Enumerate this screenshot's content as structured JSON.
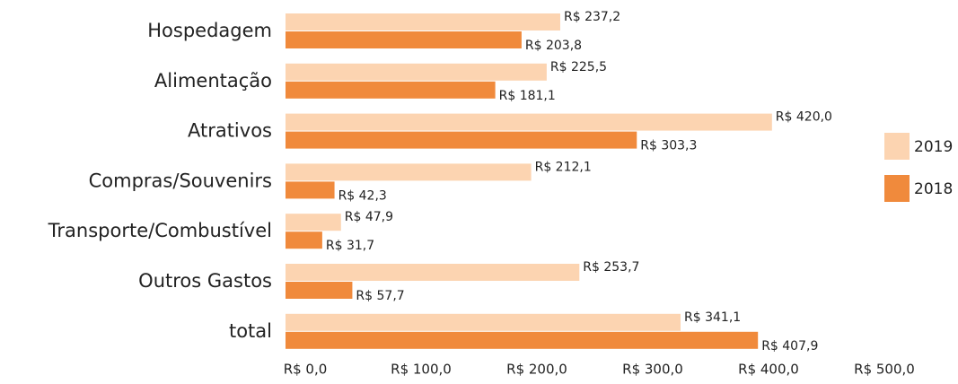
{
  "chart_data": {
    "type": "barh",
    "categories": [
      "Hospedagem",
      "Alimentação",
      "Atrativos",
      "Compras/Souvenirs",
      "Transporte/Combustível",
      "Outros Gastos",
      "total"
    ],
    "series": [
      {
        "name": "2019",
        "color": "#fcd4b1",
        "values": [
          237.2,
          225.5,
          420.0,
          212.1,
          47.9,
          253.7,
          341.1
        ],
        "value_labels": [
          "R$ 237,2",
          "R$ 225,5",
          "R$ 420,0",
          "R$ 212,1",
          "R$ 47,9",
          "R$ 253,7",
          "R$ 341,1"
        ]
      },
      {
        "name": "2018",
        "color": "#f08a3c",
        "values": [
          203.8,
          181.1,
          303.3,
          42.3,
          31.7,
          57.7,
          407.9
        ],
        "value_labels": [
          "R$ 203,8",
          "R$ 181,1",
          "R$ 303,3",
          "R$ 42,3",
          "R$ 31,7",
          "R$ 57,7",
          "R$ 407,9"
        ]
      }
    ],
    "xlim": [
      0,
      500
    ],
    "xticks": [
      {
        "value": 0,
        "label": "R$ 0,0"
      },
      {
        "value": 100,
        "label": "R$ 100,0"
      },
      {
        "value": 200,
        "label": "R$ 200,0"
      },
      {
        "value": 300,
        "label": "R$ 300,0"
      },
      {
        "value": 400,
        "label": "R$ 400,0"
      },
      {
        "value": 500,
        "label": "R$ 500,0"
      }
    ],
    "legend": "right"
  }
}
